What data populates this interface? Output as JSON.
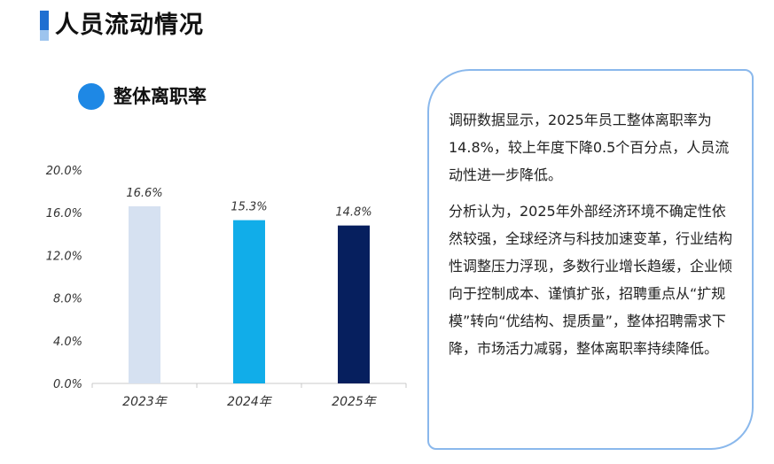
{
  "header": {
    "title": "人员流动情况"
  },
  "legend": {
    "label": "整体离职率",
    "color": "#1e88e5"
  },
  "chart_data": {
    "type": "bar",
    "title": "",
    "categories": [
      "2023年",
      "2024年",
      "2025年"
    ],
    "values": [
      16.6,
      15.3,
      14.8
    ],
    "value_labels": [
      "16.6%",
      "15.3%",
      "14.8%"
    ],
    "bar_colors": [
      "#d6e1f1",
      "#11ade9",
      "#061f5e"
    ],
    "y_ticks": [
      "0.0%",
      "4.0%",
      "8.0%",
      "12.0%",
      "16.0%",
      "20.0%"
    ],
    "ylim": [
      0,
      20
    ],
    "grid": false,
    "xlabel": "",
    "ylabel": ""
  },
  "analysis": {
    "paragraphs": [
      "调研数据显示，2025年员工整体离职率为14.8%，较上年度下降0.5个百分点，人员流动性进一步降低。",
      "分析认为，2025年外部经济环境不确定性依然较强，全球经济与科技加速变革，行业结构性调整压力浮现，多数行业增长趋缓，企业倾向于控制成本、谨慎扩张，招聘重点从“扩规模”转向“优结构、提质量”，整体招聘需求下降，市场活力减弱，整体离职率持续降低。"
    ]
  }
}
